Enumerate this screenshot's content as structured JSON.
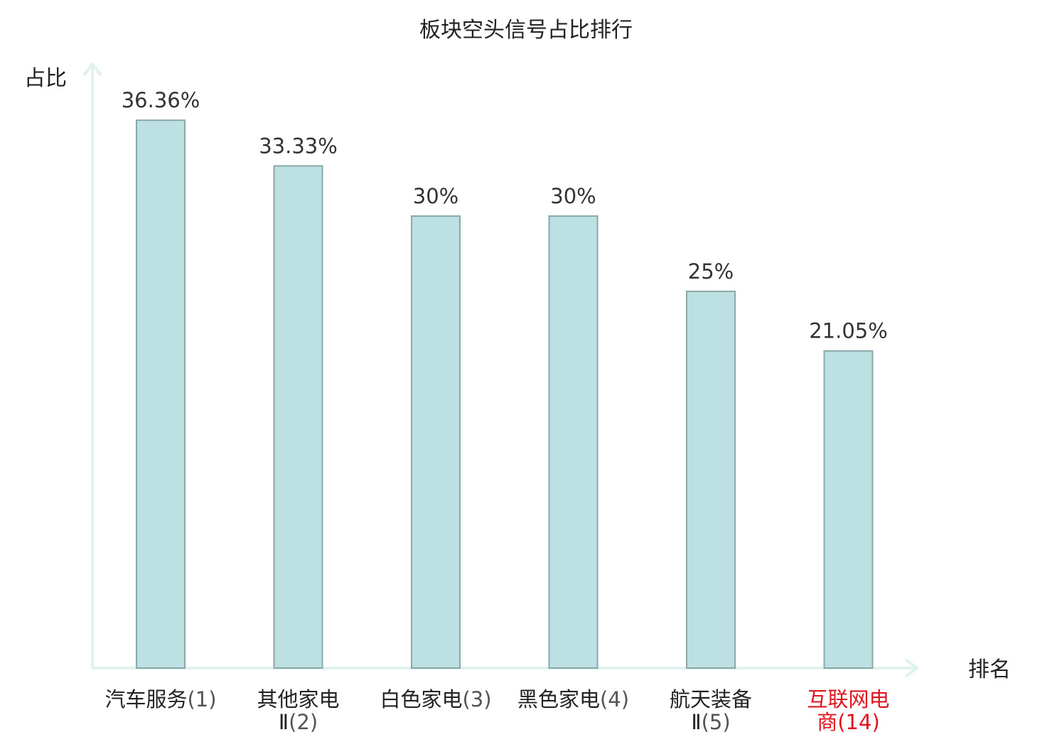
{
  "chart_data": {
    "type": "bar",
    "title": "板块空头信号占比排行",
    "ylabel": "占比",
    "xlabel": "排名",
    "categories": [
      {
        "lines": [
          {
            "name": "汽车服务",
            "rank": "(1)"
          }
        ],
        "highlight": false
      },
      {
        "lines": [
          {
            "name": "其他家电",
            "rank": ""
          },
          {
            "name": "Ⅱ",
            "rank": "(2)"
          }
        ],
        "highlight": false
      },
      {
        "lines": [
          {
            "name": "白色家电",
            "rank": "(3)"
          }
        ],
        "highlight": false
      },
      {
        "lines": [
          {
            "name": "黑色家电",
            "rank": "(4)"
          }
        ],
        "highlight": false
      },
      {
        "lines": [
          {
            "name": "航天装备",
            "rank": ""
          },
          {
            "name": "Ⅱ",
            "rank": "(5)"
          }
        ],
        "highlight": false
      },
      {
        "lines": [
          {
            "name": "互联网电",
            "rank": ""
          },
          {
            "name": "商",
            "rank": "(14)"
          }
        ],
        "highlight": true
      }
    ],
    "values": [
      36.36,
      33.33,
      30,
      30,
      25,
      21.05
    ],
    "value_labels": [
      "36.36%",
      "33.33%",
      "30%",
      "30%",
      "25%",
      "21.05%"
    ],
    "ylim": [
      0,
      40
    ],
    "grid": false,
    "colors": {
      "bar_fill": "#bde0e3",
      "bar_stroke": "#8aa8aa",
      "axis": "#dff2ef",
      "text": "#222222",
      "value_text": "#333333",
      "rank_text": "#555555",
      "highlight": "#e0141e"
    }
  }
}
